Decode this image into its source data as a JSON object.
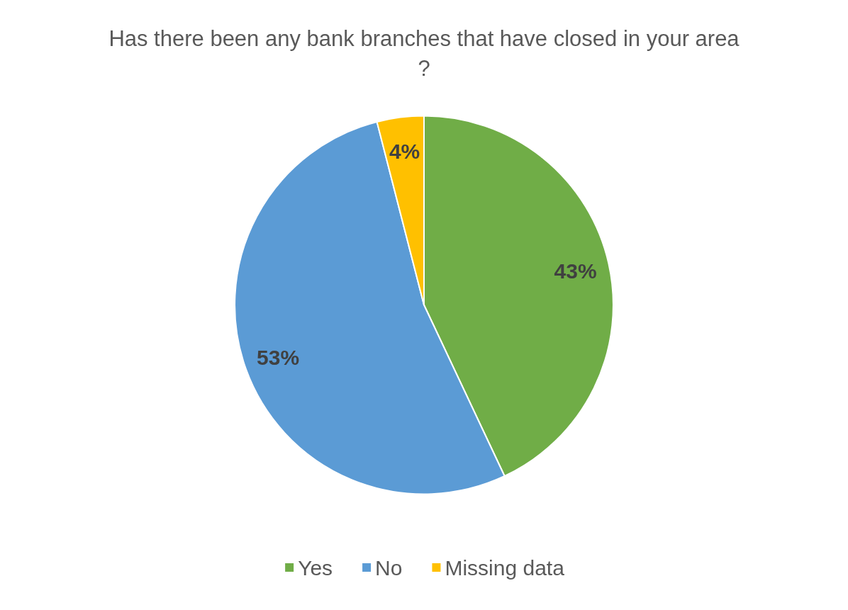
{
  "chart_data": {
    "type": "pie",
    "title": "Has there been any bank branches that have closed in your area?",
    "categories": [
      "Yes",
      "No",
      "Missing data"
    ],
    "values": [
      43,
      53,
      4
    ],
    "value_labels": [
      "43%",
      "53%",
      "4%"
    ],
    "colors": [
      "#70ad47",
      "#5b9bd5",
      "#ffc000"
    ],
    "legend": "bottom"
  }
}
